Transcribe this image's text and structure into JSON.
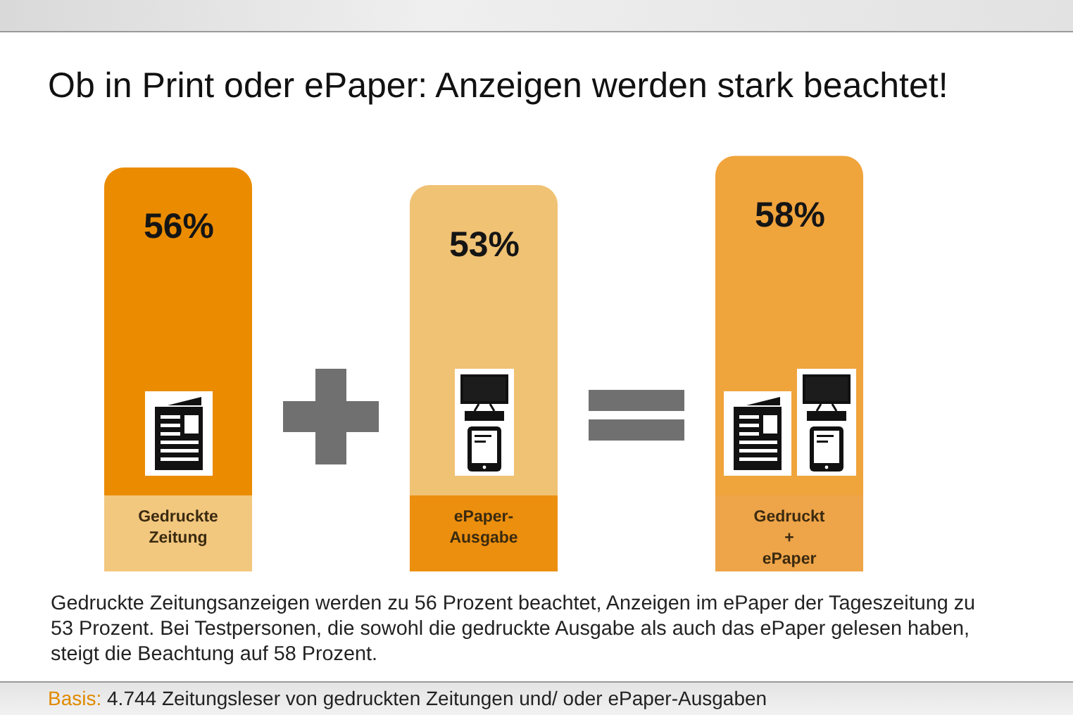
{
  "chart_data": {
    "type": "bar",
    "title": "Ob in Print oder ePaper: Anzeigen werden stark beachtet!",
    "categories": [
      "Gedruckte Zeitung",
      "ePaper-Ausgabe",
      "Gedruckt + ePaper"
    ],
    "values": [
      56,
      53,
      58
    ],
    "colors": [
      "#eb8c00",
      "#f0c274",
      "#f0a43c"
    ],
    "value_labels": [
      "56%",
      "53%",
      "58%"
    ],
    "tick_labels": "x",
    "annotations": [
      "Gedruckte Zeitungsanzeigen werden zu 56 Prozent beachtet, Anzeigen im ePaper der Tageszeitung zu 53 Prozent. Bei Testpersonen, die sowohl die gedruckte Ausgabe als auch das ePaper gelesen haben, steigt die Beachtung auf 58 Prozent.",
      "Basis: 4.744 Zeitungsleser von gedruckten Zeitungen und/ oder ePaper-Ausgaben"
    ]
  }
}
